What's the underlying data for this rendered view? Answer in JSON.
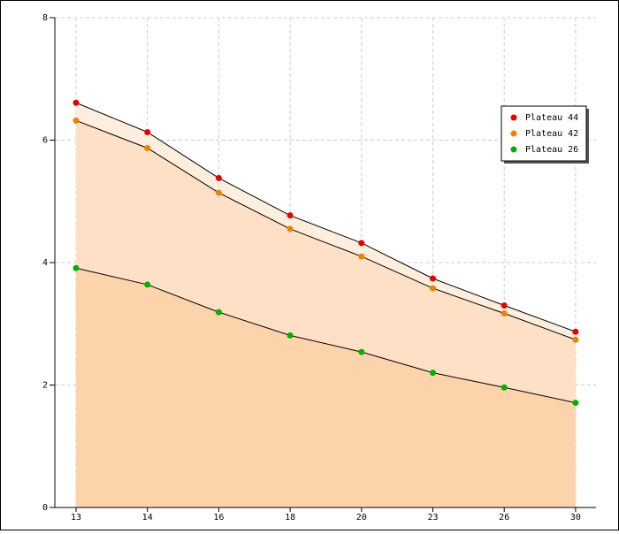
{
  "chart_data": {
    "type": "area",
    "categories": [
      "13",
      "14",
      "16",
      "18",
      "20",
      "23",
      "26",
      "30"
    ],
    "series": [
      {
        "name": "Plateau 44",
        "color": "#e60000",
        "fill": "#fdeedd",
        "values": [
          6.61,
          6.13,
          5.38,
          4.77,
          4.32,
          3.74,
          3.3,
          2.87
        ]
      },
      {
        "name": "Plateau 42",
        "color": "#f08000",
        "fill": "#fde0c6",
        "values": [
          6.32,
          5.87,
          5.14,
          4.55,
          4.1,
          3.58,
          3.17,
          2.74
        ]
      },
      {
        "name": "Plateau 26",
        "color": "#00b000",
        "fill": "#fdd3ac",
        "values": [
          3.91,
          3.64,
          3.19,
          2.81,
          2.54,
          2.2,
          1.96,
          1.71
        ]
      }
    ],
    "ylim": [
      0,
      8
    ],
    "yticks": [
      0,
      2,
      4,
      6,
      8
    ],
    "grid": true,
    "legend": "upper right"
  }
}
